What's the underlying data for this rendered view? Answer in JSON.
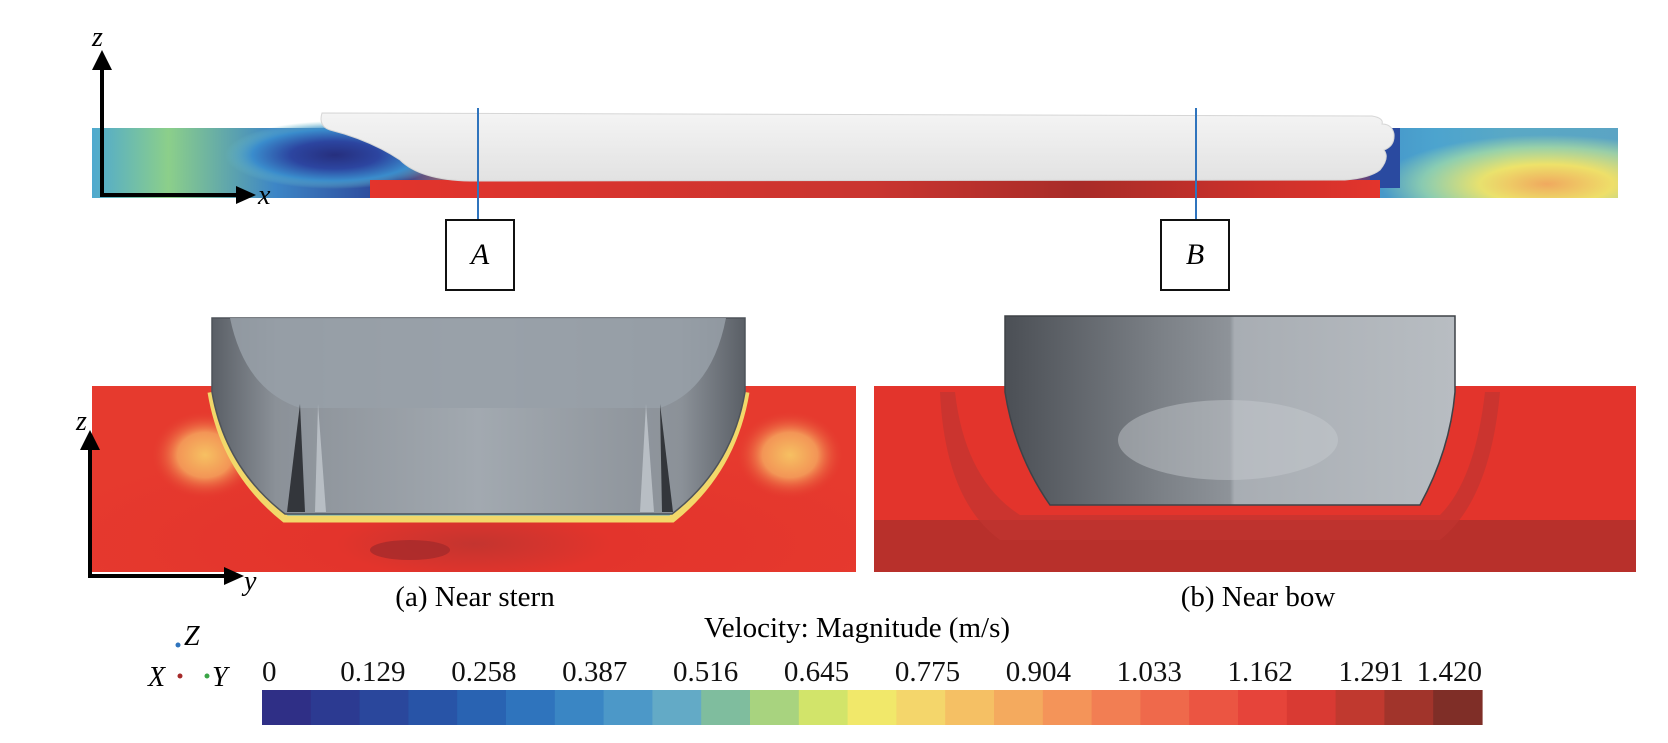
{
  "figure": {
    "top_axes": {
      "vertical": "z",
      "horizontal": "x"
    },
    "sections": [
      {
        "id": "A",
        "label": "A"
      },
      {
        "id": "B",
        "label": "B"
      }
    ],
    "panels": [
      {
        "id": "a",
        "caption": "(a) Near stern",
        "axes": {
          "vertical": "z",
          "horizontal": "y"
        }
      },
      {
        "id": "b",
        "caption": "(b) Near bow"
      }
    ],
    "orientation_triad": {
      "x": "X",
      "y": "Y",
      "z": "Z"
    },
    "colorbar": {
      "title": "Velocity: Magnitude (m/s)",
      "ticks": [
        "0",
        "0.129",
        "0.258",
        "0.387",
        "0.516",
        "0.645",
        "0.775",
        "0.904",
        "1.033",
        "1.162",
        "1.291",
        "1.420"
      ],
      "min": 0,
      "max": 1.42,
      "colors": [
        "#2f2f86",
        "#2c3a91",
        "#2a479c",
        "#2854a7",
        "#2963b2",
        "#2f74bd",
        "#3a86c4",
        "#4c98c8",
        "#63aac6",
        "#7fbd9e",
        "#a8d37f",
        "#d2e46a",
        "#f1e86a",
        "#f4d66b",
        "#f5c064",
        "#f4aa5e",
        "#f49459",
        "#f27e53",
        "#ef694b",
        "#eb5542",
        "#e6443a",
        "#d93a33",
        "#c0392f",
        "#a1342b",
        "#7f2e27"
      ],
      "accent": {
        "red": "#e3342c",
        "deep_red": "#a52a2a",
        "blue": "#2b3a8f",
        "hull_light": "#ededed",
        "hull_gray": "#9ba2aa"
      }
    }
  }
}
